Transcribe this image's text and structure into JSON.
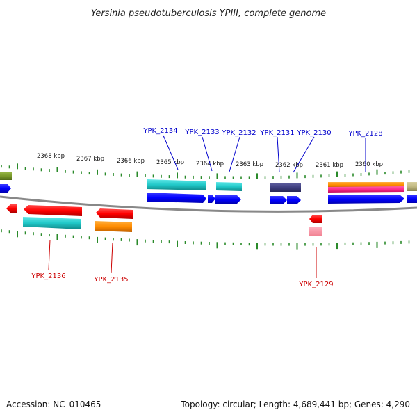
{
  "title": "Yersinia pseudotuberculosis YPIII, complete genome",
  "footer": {
    "accession": "Accession: NC_010465",
    "topology": "Topology: circular; Length: 4,689,441 bp; Genes: 4,290"
  },
  "kbp_labels": [
    "2368 kbp",
    "2367 kbp",
    "2366 kbp",
    "2365 kbp",
    "2364 kbp",
    "2363 kbp",
    "2362 kbp",
    "2361 kbp",
    "2360 kbp"
  ],
  "top_labels": [
    "YPK_2134",
    "YPK_2133",
    "YPK_2132",
    "YPK_2131",
    "YPK_2130",
    "YPK_2128"
  ],
  "bottom_labels": [
    "YPK_2136",
    "YPK_2135",
    "YPK_2129"
  ],
  "colors": {
    "cds_forward": "#0000ff",
    "cds_reverse": "#ff0000",
    "cyan": "#20c8c8",
    "orange": "#ff8c00",
    "navy": "#404080",
    "magenta": "#ff2a8a",
    "olive": "#7a9a2a",
    "pink": "#e87878",
    "tick": "#2a8a2a",
    "backbone": "#888888",
    "label_top": "#0000cc",
    "label_bottom": "#cc0000"
  }
}
